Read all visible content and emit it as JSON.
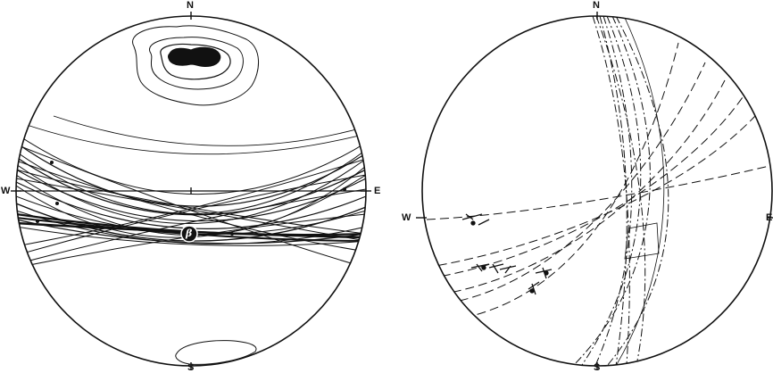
{
  "net_left": {
    "north": "N",
    "south": "S",
    "west": "W",
    "east": "E",
    "axis_symbol": "β"
  },
  "net_right": {
    "north": "N",
    "south": "S",
    "west": "W",
    "east": "E"
  },
  "ink_color": "#111111",
  "paper_color": "#ffffff"
}
